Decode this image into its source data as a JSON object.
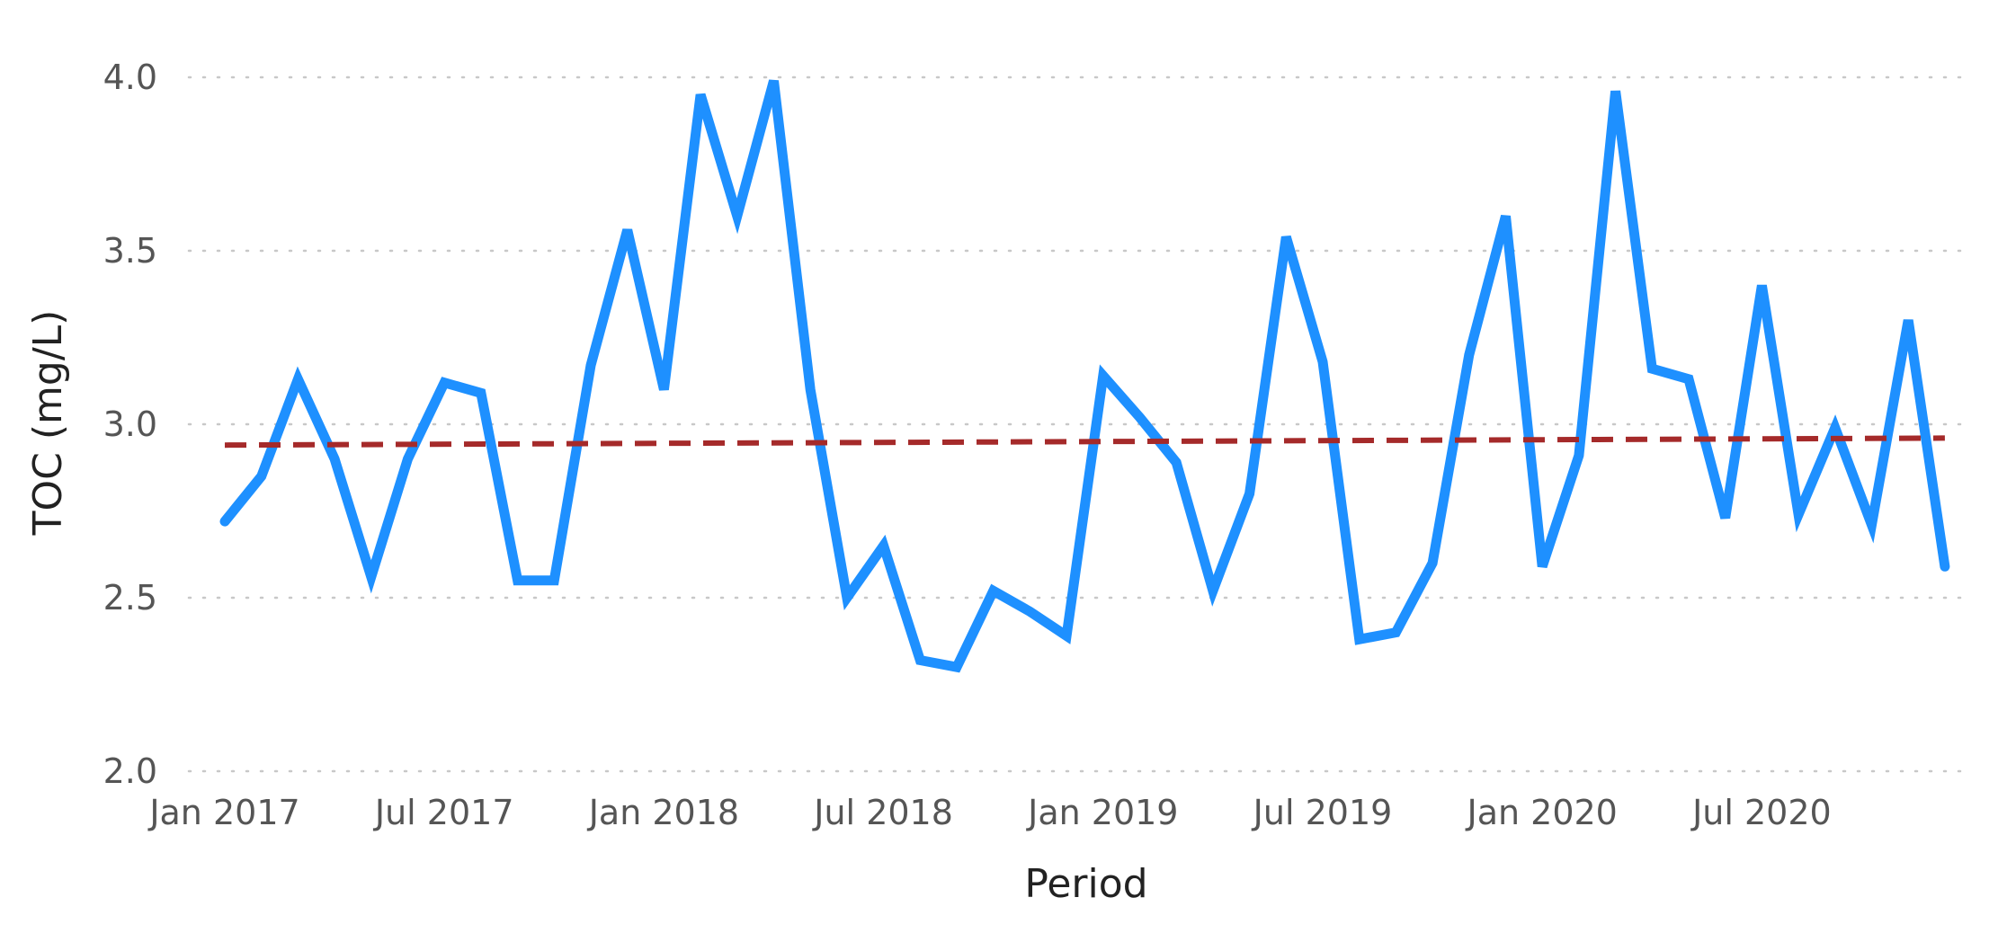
{
  "chart_data": {
    "type": "line",
    "xlabel": "Period",
    "ylabel": "TOC (mg/L)",
    "ylim": [
      2.0,
      4.0
    ],
    "yticks": [
      "2.0",
      "2.5",
      "3.0",
      "3.5",
      "4.0"
    ],
    "xticks": [
      {
        "date": "2017-01",
        "label": "Jan 2017"
      },
      {
        "date": "2017-07",
        "label": "Jul 2017"
      },
      {
        "date": "2018-01",
        "label": "Jan 2018"
      },
      {
        "date": "2018-07",
        "label": "Jul 2018"
      },
      {
        "date": "2019-01",
        "label": "Jan 2019"
      },
      {
        "date": "2019-07",
        "label": "Jul 2019"
      },
      {
        "date": "2020-01",
        "label": "Jan 2020"
      },
      {
        "date": "2020-07",
        "label": "Jul 2020"
      }
    ],
    "grid": true,
    "series": [
      {
        "color": "#1e90ff",
        "style": "solid",
        "x": [
          "2017-01",
          "2017-02",
          "2017-03",
          "2017-04",
          "2017-05",
          "2017-06",
          "2017-07",
          "2017-08",
          "2017-09",
          "2017-10",
          "2017-11",
          "2017-12",
          "2018-01",
          "2018-02",
          "2018-03",
          "2018-04",
          "2018-05",
          "2018-06",
          "2018-07",
          "2018-08",
          "2018-09",
          "2018-10",
          "2018-11",
          "2018-12",
          "2019-01",
          "2019-02",
          "2019-03",
          "2019-04",
          "2019-05",
          "2019-06",
          "2019-07",
          "2019-08",
          "2019-09",
          "2019-10",
          "2019-11",
          "2019-12",
          "2020-01",
          "2020-02",
          "2020-03",
          "2020-04",
          "2020-05",
          "2020-06",
          "2020-07",
          "2020-08",
          "2020-09",
          "2020-10",
          "2020-11",
          "2020-12"
        ],
        "values": [
          2.72,
          2.85,
          3.13,
          2.9,
          2.56,
          2.9,
          3.12,
          3.09,
          2.55,
          2.55,
          3.17,
          3.56,
          3.1,
          3.95,
          3.6,
          3.99,
          3.1,
          2.5,
          2.65,
          2.32,
          2.3,
          2.52,
          2.46,
          2.39,
          3.14,
          3.02,
          2.89,
          2.52,
          2.8,
          3.54,
          3.18,
          2.38,
          2.4,
          2.6,
          3.2,
          3.6,
          2.59,
          2.91,
          3.96,
          3.16,
          3.13,
          2.73,
          3.4,
          2.74,
          2.99,
          2.71,
          3.3,
          2.59
        ]
      },
      {
        "color": "#a52a2a",
        "style": "dashed",
        "x": [
          "2017-01",
          "2020-12"
        ],
        "values": [
          2.94,
          2.96
        ]
      }
    ]
  }
}
